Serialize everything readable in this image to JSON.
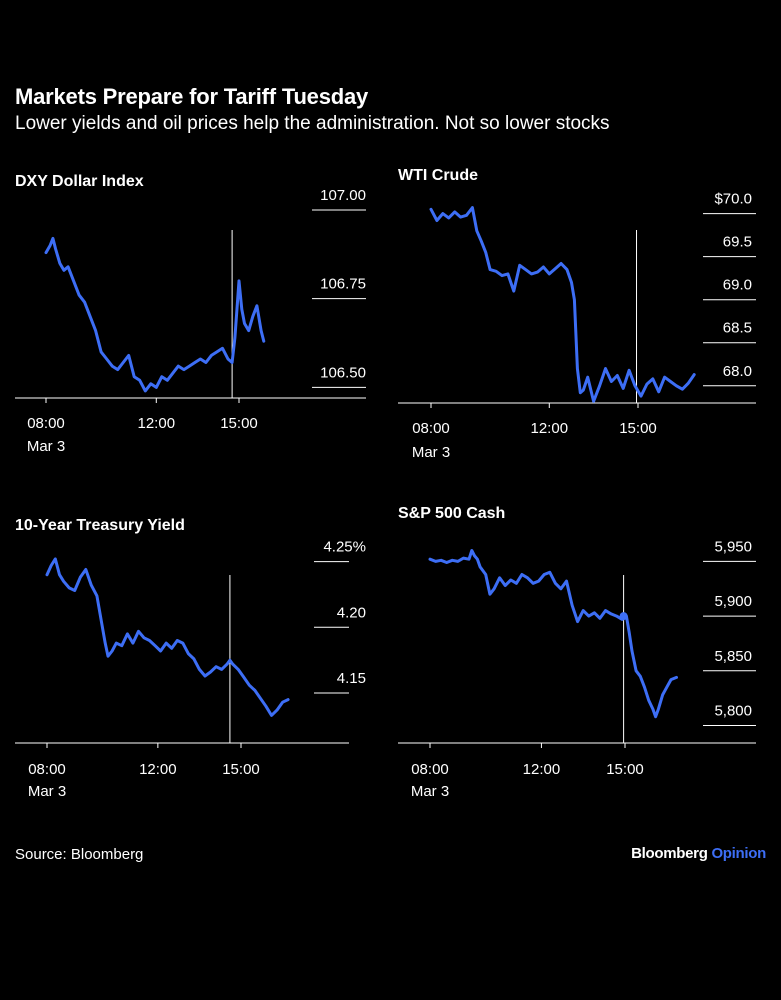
{
  "header": {
    "title": "Markets Prepare for Tariff Tuesday",
    "subtitle": "Lower yields and oil prices help the administration. Not so lower stocks"
  },
  "footer": {
    "source": "Source: Bloomberg",
    "brand_primary": "Bloomberg",
    "brand_secondary": "Opinion"
  },
  "colors": {
    "background": "#000000",
    "line": "#3d6ef5",
    "text": "#ffffff",
    "axis": "#ffffff"
  },
  "chart_data": [
    {
      "type": "line",
      "title": "DXY Dollar Index",
      "xlim": [
        8,
        17
      ],
      "ylim": [
        106.47,
        107.0
      ],
      "x_ticks": [
        8,
        12,
        15
      ],
      "x_tick_labels": [
        "08:00",
        "12:00",
        "15:00"
      ],
      "x_sublabel": "Mar 3",
      "y_ticks": [
        107.0,
        106.75,
        106.5
      ],
      "y_tick_labels": [
        "107.00",
        "106.75",
        "106.50"
      ],
      "marker_time": 14.75,
      "series": [
        {
          "x": [
            8.0,
            8.15,
            8.25,
            8.35,
            8.5,
            8.65,
            8.8,
            9.0,
            9.2,
            9.4,
            9.6,
            9.8,
            10.0,
            10.2,
            10.4,
            10.6,
            10.8,
            11.0,
            11.2,
            11.4,
            11.6,
            11.8,
            12.0,
            12.2,
            12.4,
            12.6,
            12.8,
            13.0,
            13.2,
            13.4,
            13.6,
            13.8,
            14.0,
            14.2,
            14.4,
            14.6,
            14.75,
            14.85,
            15.0,
            15.1,
            15.2,
            15.35,
            15.5,
            15.65,
            15.8,
            15.9
          ],
          "y": [
            106.88,
            106.9,
            106.92,
            106.89,
            106.85,
            106.83,
            106.84,
            106.8,
            106.76,
            106.74,
            106.7,
            106.66,
            106.6,
            106.58,
            106.56,
            106.55,
            106.57,
            106.59,
            106.53,
            106.52,
            106.49,
            106.51,
            106.5,
            106.53,
            106.52,
            106.54,
            106.56,
            106.55,
            106.56,
            106.57,
            106.58,
            106.57,
            106.59,
            106.6,
            106.61,
            106.58,
            106.57,
            106.64,
            106.8,
            106.72,
            106.68,
            106.66,
            106.7,
            106.73,
            106.66,
            106.63
          ]
        }
      ]
    },
    {
      "type": "line",
      "title": "WTI Crude",
      "xlim": [
        8,
        17
      ],
      "ylim": [
        67.8,
        70.1
      ],
      "x_ticks": [
        8,
        12,
        15
      ],
      "x_tick_labels": [
        "08:00",
        "12:00",
        "15:00"
      ],
      "x_sublabel": "Mar 3",
      "y_ticks": [
        70.0,
        69.5,
        69.0,
        68.5,
        68.0
      ],
      "y_tick_labels": [
        "$70.0",
        "69.5",
        "69.0",
        "68.5",
        "68.0"
      ],
      "marker_time": 14.95,
      "series": [
        {
          "x": [
            8.0,
            8.2,
            8.4,
            8.6,
            8.8,
            9.0,
            9.2,
            9.4,
            9.55,
            9.7,
            9.85,
            10.0,
            10.2,
            10.4,
            10.6,
            10.8,
            11.0,
            11.2,
            11.4,
            11.6,
            11.8,
            12.0,
            12.2,
            12.4,
            12.6,
            12.75,
            12.85,
            12.95,
            13.05,
            13.15,
            13.3,
            13.5,
            13.7,
            13.9,
            14.1,
            14.3,
            14.5,
            14.7,
            14.9,
            15.1,
            15.3,
            15.5,
            15.7,
            15.9,
            16.1,
            16.3,
            16.5,
            16.7,
            16.9
          ],
          "y": [
            70.05,
            69.92,
            70.0,
            69.95,
            70.02,
            69.96,
            69.98,
            70.07,
            69.8,
            69.68,
            69.55,
            69.35,
            69.33,
            69.28,
            69.3,
            69.1,
            69.4,
            69.35,
            69.3,
            69.32,
            69.38,
            69.3,
            69.36,
            69.42,
            69.35,
            69.2,
            69.0,
            68.2,
            67.92,
            67.95,
            68.1,
            67.82,
            68.0,
            68.2,
            68.05,
            68.12,
            67.97,
            68.18,
            68.0,
            67.88,
            68.02,
            68.08,
            67.93,
            68.1,
            68.05,
            68.0,
            67.96,
            68.03,
            68.13
          ]
        }
      ]
    },
    {
      "type": "line",
      "title": "10-Year Treasury Yield",
      "xlim": [
        8,
        18.2
      ],
      "ylim": [
        4.112,
        4.255
      ],
      "x_ticks": [
        8,
        12,
        15
      ],
      "x_tick_labels": [
        "08:00",
        "12:00",
        "15:00"
      ],
      "x_sublabel": "Mar 3",
      "y_ticks": [
        4.25,
        4.2,
        4.15
      ],
      "y_tick_labels": [
        "4.25%",
        "4.20",
        "4.15"
      ],
      "marker_time": 14.6,
      "series": [
        {
          "x": [
            8.0,
            8.15,
            8.3,
            8.45,
            8.6,
            8.8,
            9.0,
            9.2,
            9.4,
            9.6,
            9.8,
            10.0,
            10.1,
            10.2,
            10.35,
            10.5,
            10.7,
            10.9,
            11.1,
            11.3,
            11.5,
            11.7,
            11.9,
            12.1,
            12.3,
            12.5,
            12.7,
            12.9,
            13.1,
            13.3,
            13.5,
            13.7,
            13.9,
            14.1,
            14.3,
            14.5,
            14.6,
            14.7,
            14.9,
            15.1,
            15.3,
            15.5,
            15.7,
            15.9,
            16.1,
            16.3,
            16.5,
            16.7
          ],
          "y": [
            4.24,
            4.247,
            4.252,
            4.24,
            4.235,
            4.23,
            4.228,
            4.238,
            4.244,
            4.232,
            4.224,
            4.2,
            4.188,
            4.178,
            4.182,
            4.188,
            4.186,
            4.195,
            4.188,
            4.197,
            4.192,
            4.19,
            4.186,
            4.182,
            4.188,
            4.184,
            4.19,
            4.188,
            4.18,
            4.176,
            4.168,
            4.163,
            4.166,
            4.17,
            4.168,
            4.172,
            4.175,
            4.172,
            4.168,
            4.162,
            4.156,
            4.152,
            4.146,
            4.14,
            4.133,
            4.137,
            4.143,
            4.145
          ]
        }
      ]
    },
    {
      "type": "line",
      "title": "S&P 500 Cash",
      "xlim": [
        8,
        17
      ],
      "ylim": [
        5784,
        5965
      ],
      "x_ticks": [
        8,
        12,
        15
      ],
      "x_tick_labels": [
        "08:00",
        "12:00",
        "15:00"
      ],
      "x_sublabel": "Mar 3",
      "y_ticks": [
        5950,
        5900,
        5850,
        5800
      ],
      "y_tick_labels": [
        "5,950",
        "5,900",
        "5,850",
        "5,800"
      ],
      "marker_time": 14.95,
      "series": [
        {
          "x": [
            8.0,
            8.2,
            8.4,
            8.6,
            8.8,
            9.0,
            9.2,
            9.4,
            9.5,
            9.6,
            9.7,
            9.8,
            10.0,
            10.15,
            10.3,
            10.5,
            10.7,
            10.9,
            11.1,
            11.3,
            11.5,
            11.7,
            11.9,
            12.1,
            12.3,
            12.5,
            12.7,
            12.9,
            13.1,
            13.3,
            13.5,
            13.7,
            13.9,
            14.1,
            14.3,
            14.5,
            14.7,
            14.9,
            15.05,
            15.15,
            15.25,
            15.4,
            15.55,
            15.7,
            15.85,
            16.0,
            16.1,
            16.2,
            16.35,
            16.5,
            16.65,
            16.85
          ],
          "y": [
            5952,
            5950,
            5951,
            5949,
            5951,
            5950,
            5953,
            5952,
            5960,
            5955,
            5952,
            5945,
            5938,
            5920,
            5925,
            5935,
            5928,
            5933,
            5930,
            5938,
            5935,
            5930,
            5932,
            5938,
            5940,
            5930,
            5925,
            5932,
            5910,
            5895,
            5905,
            5900,
            5903,
            5898,
            5905,
            5902,
            5900,
            5897,
            5900,
            5885,
            5868,
            5850,
            5845,
            5835,
            5823,
            5815,
            5808,
            5815,
            5828,
            5835,
            5842,
            5844
          ]
        }
      ]
    }
  ]
}
